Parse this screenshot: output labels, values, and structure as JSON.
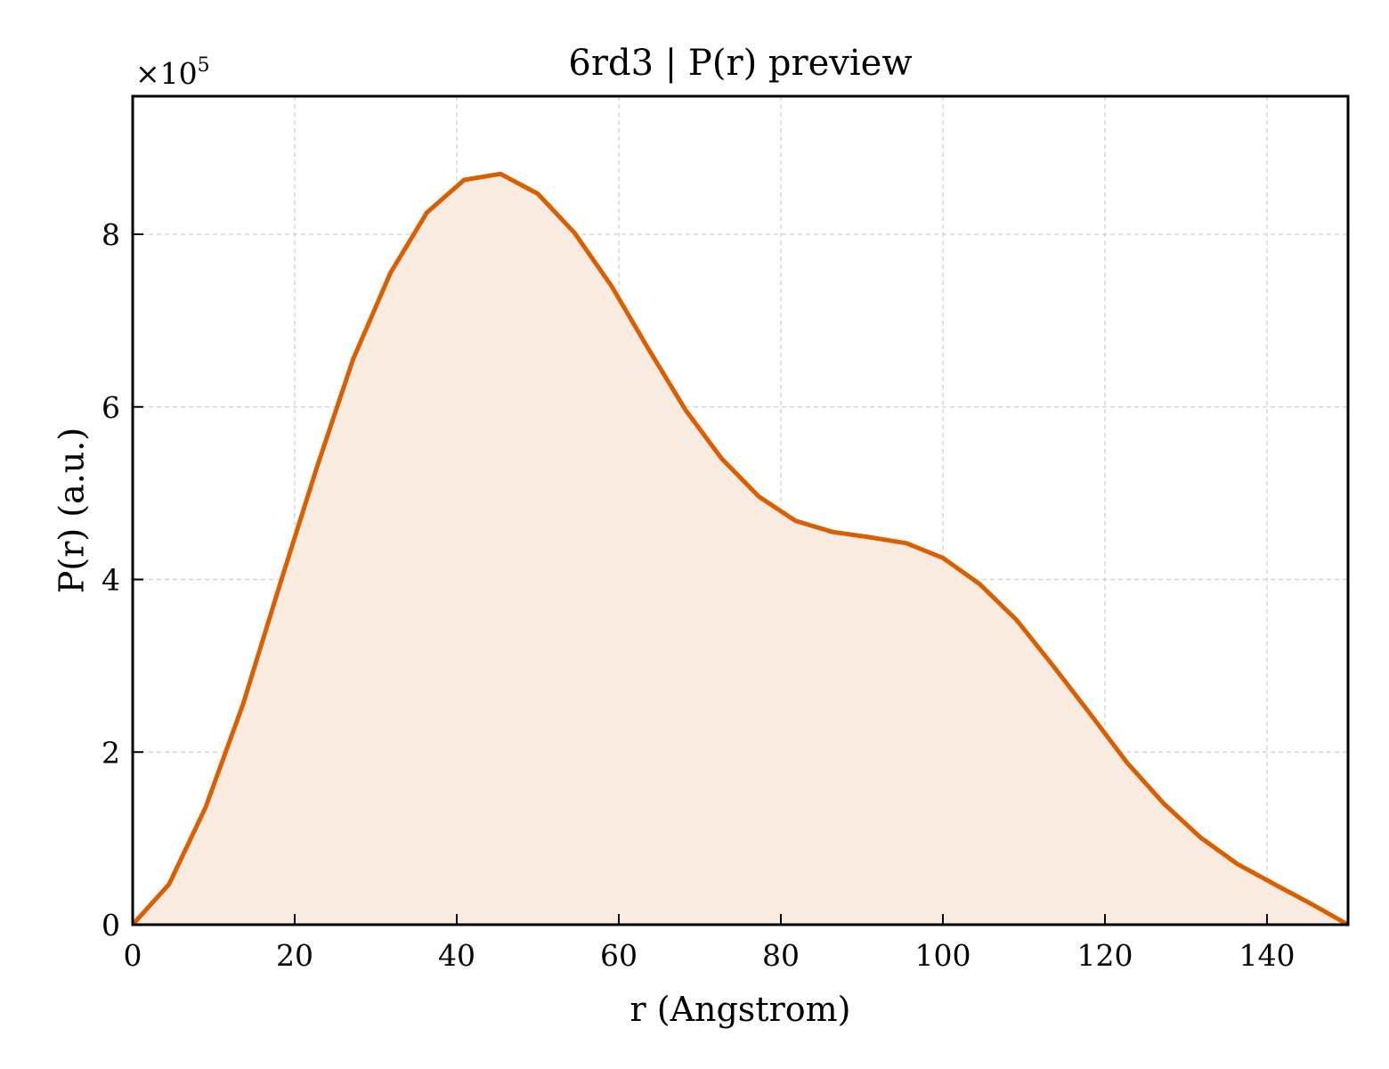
{
  "chart_data": {
    "type": "area",
    "title": "6rd3 | P(r) preview",
    "xlabel": "r (Angstrom)",
    "ylabel": "P(r) (a.u.)",
    "y_multiplier_label": "×10",
    "y_multiplier_exponent": "5",
    "xlim": [
      0,
      150
    ],
    "ylim": [
      0,
      9.6
    ],
    "x_ticks": [
      0,
      20,
      40,
      60,
      80,
      100,
      120,
      140
    ],
    "y_ticks": [
      0,
      2,
      4,
      6,
      8
    ],
    "grid": true,
    "line_color": "#d95f02",
    "fill_color": "#f9ebe0",
    "series": [
      {
        "x": [
          0,
          4.5,
          9,
          13.6,
          18.1,
          22.7,
          27.2,
          31.8,
          36.3,
          40.9,
          45.4,
          50,
          54.5,
          59.1,
          63.6,
          68.2,
          72.7,
          77.3,
          81.8,
          86.4,
          90.9,
          95.5,
          100,
          104.5,
          109.1,
          113.6,
          118.2,
          122.7,
          127.3,
          131.8,
          136.4,
          140.9,
          145.5,
          150
        ],
        "y": [
          0,
          0.47,
          1.36,
          2.55,
          3.92,
          5.29,
          6.55,
          7.55,
          8.25,
          8.63,
          8.7,
          8.47,
          8.02,
          7.4,
          6.68,
          5.97,
          5.4,
          4.96,
          4.68,
          4.55,
          4.49,
          4.42,
          4.25,
          3.95,
          3.53,
          3.0,
          2.44,
          1.88,
          1.4,
          1.01,
          0.7,
          0.47,
          0.24,
          0
        ]
      }
    ]
  }
}
